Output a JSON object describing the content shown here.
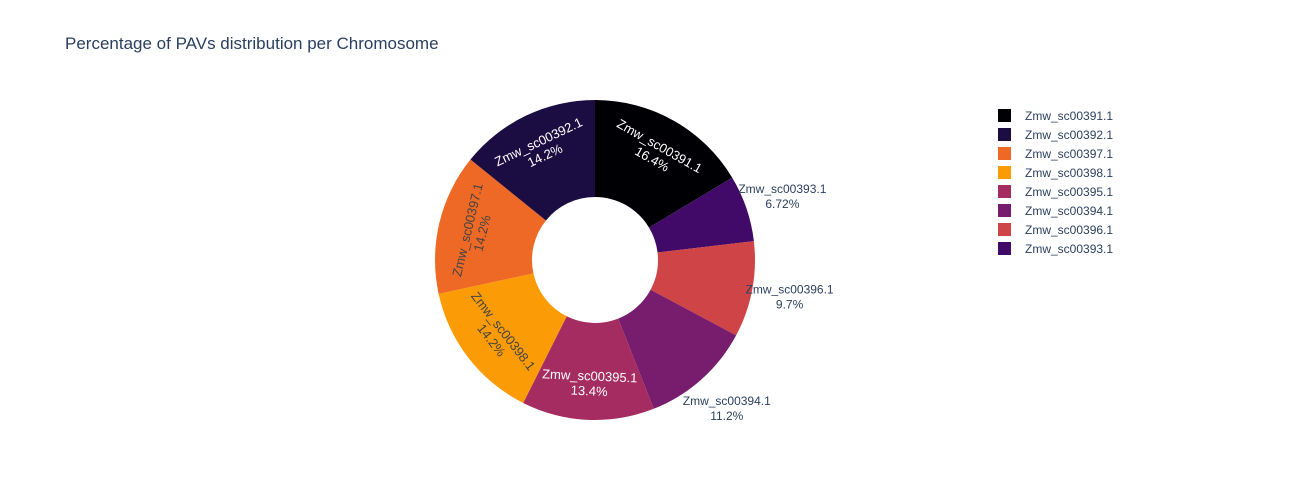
{
  "chart_data": {
    "type": "pie",
    "title": "Percentage of PAVs distribution per Chromosome",
    "hole": true,
    "legend_position": "right",
    "sort_descending": true,
    "slices": [
      {
        "label": "Zmw_sc00391.1",
        "value": 16.4,
        "pct_label": "16.4%",
        "color": "#000004",
        "text_color": "#ffffff",
        "text_pos": "inside"
      },
      {
        "label": "Zmw_sc00393.1",
        "value": 6.72,
        "pct_label": "6.72%",
        "color": "#420a68",
        "text_color": "#2a3f5f",
        "text_pos": "outside"
      },
      {
        "label": "Zmw_sc00396.1",
        "value": 9.7,
        "pct_label": "9.7%",
        "color": "#cf4446",
        "text_color": "#2a3f5f",
        "text_pos": "outside"
      },
      {
        "label": "Zmw_sc00394.1",
        "value": 11.2,
        "pct_label": "11.2%",
        "color": "#781c6d",
        "text_color": "#2a3f5f",
        "text_pos": "outside"
      },
      {
        "label": "Zmw_sc00395.1",
        "value": 13.4,
        "pct_label": "13.4%",
        "color": "#a52c60",
        "text_color": "#ffffff",
        "text_pos": "inside"
      },
      {
        "label": "Zmw_sc00398.1",
        "value": 14.2,
        "pct_label": "14.2%",
        "color": "#fb9b06",
        "text_color": "#444444",
        "text_pos": "inside"
      },
      {
        "label": "Zmw_sc00397.1",
        "value": 14.2,
        "pct_label": "14.2%",
        "color": "#ed6925",
        "text_color": "#444444",
        "text_pos": "inside"
      },
      {
        "label": "Zmw_sc00392.1",
        "value": 14.2,
        "pct_label": "14.2%",
        "color": "#1b0c41",
        "text_color": "#ffffff",
        "text_pos": "inside"
      }
    ],
    "legend": [
      {
        "label": "Zmw_sc00391.1",
        "color": "#000004"
      },
      {
        "label": "Zmw_sc00392.1",
        "color": "#1b0c41"
      },
      {
        "label": "Zmw_sc00397.1",
        "color": "#ed6925"
      },
      {
        "label": "Zmw_sc00398.1",
        "color": "#fb9b06"
      },
      {
        "label": "Zmw_sc00395.1",
        "color": "#a52c60"
      },
      {
        "label": "Zmw_sc00394.1",
        "color": "#781c6d"
      },
      {
        "label": "Zmw_sc00396.1",
        "color": "#cf4446"
      },
      {
        "label": "Zmw_sc00393.1",
        "color": "#420a68"
      }
    ]
  }
}
